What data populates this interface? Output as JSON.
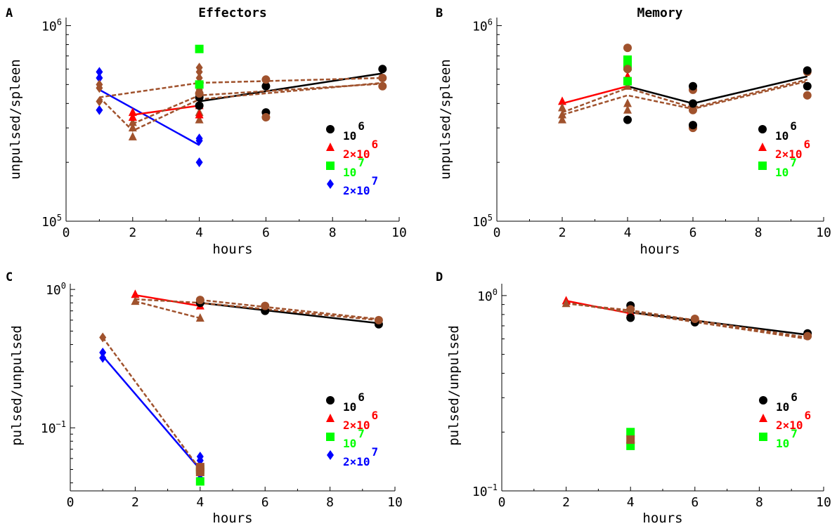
{
  "colors": {
    "black": "#000000",
    "red": "#ff0000",
    "green": "#00ff00",
    "blue": "#0000ff",
    "brown": "#a0522d"
  },
  "chart_data": [
    {
      "panel_letter": "A",
      "title": "Effectors",
      "type": "scatter",
      "xlabel": "hours",
      "ylabel": "unpulsed/spleen",
      "xlim": [
        0,
        10
      ],
      "ylim": [
        100000,
        1100000
      ],
      "log_y": true,
      "x_ticks": [
        0,
        2,
        4,
        6,
        8,
        10
      ],
      "y_ticks": [
        {
          "value": 100000,
          "base": "10",
          "exp": "5"
        },
        {
          "value": 1000000,
          "base": "10",
          "exp": "6"
        }
      ],
      "legend": [
        {
          "base": "10",
          "exp": "6",
          "color": "black",
          "marker": "circle"
        },
        {
          "base": "2×10",
          "exp": "6",
          "color": "red",
          "marker": "triangle"
        },
        {
          "base": "10",
          "exp": "7",
          "color": "green",
          "marker": "square"
        },
        {
          "base": "2×10",
          "exp": "7",
          "color": "blue",
          "marker": "diamond"
        }
      ],
      "points": [
        {
          "color": "blue",
          "marker": "diamond",
          "xy": [
            [
              1,
              580000
            ],
            [
              1,
              540000
            ],
            [
              1,
              370000
            ],
            [
              4,
              265000
            ],
            [
              4,
              258000
            ],
            [
              4,
              200000
            ]
          ]
        },
        {
          "color": "brown",
          "marker": "diamond",
          "xy": [
            [
              1,
              500000
            ],
            [
              1,
              480000
            ],
            [
              1,
              410000
            ],
            [
              4,
              610000
            ],
            [
              4,
              580000
            ],
            [
              4,
              540000
            ],
            [
              4,
              470000
            ]
          ]
        },
        {
          "color": "brown",
          "marker": "triangle",
          "xy": [
            [
              2,
              340000
            ],
            [
              2,
              320000
            ],
            [
              2,
              300000
            ],
            [
              2,
              270000
            ],
            [
              4,
              400000
            ],
            [
              4,
              360000
            ],
            [
              4,
              330000
            ]
          ]
        },
        {
          "color": "red",
          "marker": "triangle",
          "xy": [
            [
              2,
              360000
            ],
            [
              2,
              340000
            ],
            [
              4,
              390000
            ],
            [
              4,
              350000
            ]
          ]
        },
        {
          "color": "green",
          "marker": "square",
          "xy": [
            [
              4,
              760000
            ],
            [
              4,
              500000
            ]
          ]
        },
        {
          "color": "black",
          "marker": "circle",
          "xy": [
            [
              4,
              430000
            ],
            [
              4,
              390000
            ],
            [
              6,
              490000
            ],
            [
              6,
              360000
            ],
            [
              9.5,
              600000
            ]
          ]
        },
        {
          "color": "brown",
          "marker": "circle",
          "xy": [
            [
              4,
              450000
            ],
            [
              6,
              530000
            ],
            [
              6,
              340000
            ],
            [
              9.5,
              540000
            ],
            [
              9.5,
              490000
            ]
          ]
        }
      ],
      "lines": [
        {
          "color": "blue",
          "dashed": false,
          "xy": [
            [
              1,
              470000
            ],
            [
              4,
              245000
            ]
          ]
        },
        {
          "color": "red",
          "dashed": false,
          "xy": [
            [
              2,
              350000
            ],
            [
              4,
              390000
            ]
          ]
        },
        {
          "color": "black",
          "dashed": false,
          "xy": [
            [
              4,
              410000
            ],
            [
              9.5,
              570000
            ]
          ]
        },
        {
          "color": "brown",
          "dashed": true,
          "xy": [
            [
              1,
              430000
            ],
            [
              4,
              510000
            ],
            [
              9.5,
              540000
            ]
          ]
        },
        {
          "color": "brown",
          "dashed": true,
          "xy": [
            [
              1,
              430000
            ],
            [
              2,
              290000
            ],
            [
              4,
              420000
            ],
            [
              9.5,
              510000
            ]
          ]
        },
        {
          "color": "brown",
          "dashed": true,
          "xy": [
            [
              2,
              315000
            ],
            [
              4,
              440000
            ],
            [
              9.5,
              505000
            ]
          ]
        }
      ]
    },
    {
      "panel_letter": "B",
      "title": "Memory",
      "type": "scatter",
      "xlabel": "hours",
      "ylabel": "unpulsed/spleen",
      "xlim": [
        0,
        10
      ],
      "ylim": [
        100000,
        1100000
      ],
      "log_y": true,
      "x_ticks": [
        0,
        2,
        4,
        6,
        8,
        10
      ],
      "y_ticks": [
        {
          "value": 100000,
          "base": "10",
          "exp": "5"
        },
        {
          "value": 1000000,
          "base": "10",
          "exp": "6"
        }
      ],
      "legend": [
        {
          "base": "10",
          "exp": "6",
          "color": "black",
          "marker": "circle"
        },
        {
          "base": "2×10",
          "exp": "6",
          "color": "red",
          "marker": "triangle"
        },
        {
          "base": "10",
          "exp": "7",
          "color": "green",
          "marker": "square"
        }
      ],
      "points": [
        {
          "color": "red",
          "marker": "triangle",
          "xy": [
            [
              2,
              410000
            ],
            [
              4,
              550000
            ]
          ]
        },
        {
          "color": "brown",
          "marker": "triangle",
          "xy": [
            [
              2,
              380000
            ],
            [
              2,
              350000
            ],
            [
              2,
              330000
            ],
            [
              4,
              400000
            ],
            [
              4,
              370000
            ],
            [
              4,
              490000
            ]
          ]
        },
        {
          "color": "green",
          "marker": "square",
          "xy": [
            [
              4,
              670000
            ],
            [
              4,
              620000
            ],
            [
              4,
              520000
            ]
          ]
        },
        {
          "color": "brown",
          "marker": "circle",
          "xy": [
            [
              4,
              770000
            ],
            [
              4,
              600000
            ],
            [
              6,
              470000
            ],
            [
              6,
              370000
            ],
            [
              6,
              300000
            ],
            [
              9.5,
              580000
            ],
            [
              9.5,
              440000
            ]
          ]
        },
        {
          "color": "black",
          "marker": "circle",
          "xy": [
            [
              4,
              330000
            ],
            [
              6,
              490000
            ],
            [
              6,
              400000
            ],
            [
              6,
              310000
            ],
            [
              9.5,
              590000
            ],
            [
              9.5,
              490000
            ]
          ]
        }
      ],
      "lines": [
        {
          "color": "red",
          "dashed": false,
          "xy": [
            [
              2,
              400000
            ],
            [
              4,
              490000
            ]
          ]
        },
        {
          "color": "black",
          "dashed": false,
          "xy": [
            [
              4,
              490000
            ],
            [
              6,
              400000
            ],
            [
              9.5,
              550000
            ]
          ]
        },
        {
          "color": "brown",
          "dashed": true,
          "xy": [
            [
              2,
              360000
            ],
            [
              4,
              480000
            ],
            [
              6,
              380000
            ],
            [
              9.5,
              530000
            ]
          ]
        },
        {
          "color": "brown",
          "dashed": true,
          "xy": [
            [
              2,
              350000
            ],
            [
              4,
              440000
            ],
            [
              6,
              375000
            ],
            [
              9.5,
              520000
            ]
          ]
        }
      ]
    },
    {
      "panel_letter": "C",
      "title": "",
      "type": "scatter",
      "xlabel": "hours",
      "ylabel": "pulsed/unpulsed",
      "xlim": [
        0,
        10
      ],
      "ylim": [
        0.035,
        1.1
      ],
      "log_y": true,
      "x_ticks": [
        0,
        2,
        4,
        6,
        8,
        10
      ],
      "y_ticks": [
        {
          "value": 1,
          "base": "10",
          "exp": "0"
        },
        {
          "value": 0.1,
          "base": "10",
          "exp": "−1"
        }
      ],
      "legend": [
        {
          "base": "10",
          "exp": "6",
          "color": "black",
          "marker": "circle"
        },
        {
          "base": "2×10",
          "exp": "6",
          "color": "red",
          "marker": "triangle"
        },
        {
          "base": "10",
          "exp": "7",
          "color": "green",
          "marker": "square"
        },
        {
          "base": "2×10",
          "exp": "7",
          "color": "blue",
          "marker": "diamond"
        }
      ],
      "points": [
        {
          "color": "brown",
          "marker": "diamond",
          "xy": [
            [
              1,
              0.45
            ]
          ]
        },
        {
          "color": "blue",
          "marker": "diamond",
          "xy": [
            [
              1,
              0.35
            ],
            [
              1,
              0.32
            ],
            [
              4,
              0.062
            ],
            [
              4,
              0.058
            ],
            [
              4,
              0.043
            ]
          ]
        },
        {
          "color": "green",
          "marker": "square",
          "xy": [
            [
              4,
              0.041
            ],
            [
              4,
              0.05
            ]
          ]
        },
        {
          "color": "brown",
          "marker": "square",
          "xy": [
            [
              4,
              0.048
            ],
            [
              4,
              0.052
            ]
          ]
        },
        {
          "color": "red",
          "marker": "triangle",
          "xy": [
            [
              2,
              0.92
            ],
            [
              4,
              0.76
            ]
          ]
        },
        {
          "color": "brown",
          "marker": "triangle",
          "xy": [
            [
              2,
              0.82
            ],
            [
              4,
              0.62
            ]
          ]
        },
        {
          "color": "black",
          "marker": "circle",
          "xy": [
            [
              4,
              0.8
            ],
            [
              6,
              0.7
            ],
            [
              9.5,
              0.56
            ]
          ]
        },
        {
          "color": "brown",
          "marker": "circle",
          "xy": [
            [
              4,
              0.84
            ],
            [
              6,
              0.76
            ],
            [
              9.5,
              0.6
            ]
          ]
        }
      ],
      "lines": [
        {
          "color": "blue",
          "dashed": false,
          "xy": [
            [
              1,
              0.33
            ],
            [
              4,
              0.05
            ]
          ]
        },
        {
          "color": "brown",
          "dashed": true,
          "xy": [
            [
              1,
              0.45
            ],
            [
              4,
              0.05
            ]
          ]
        },
        {
          "color": "red",
          "dashed": false,
          "xy": [
            [
              2,
              0.91
            ],
            [
              4,
              0.76
            ]
          ]
        },
        {
          "color": "black",
          "dashed": false,
          "xy": [
            [
              4,
              0.8
            ],
            [
              9.5,
              0.57
            ]
          ]
        },
        {
          "color": "brown",
          "dashed": true,
          "xy": [
            [
              2,
              0.82
            ],
            [
              4,
              0.62
            ]
          ]
        },
        {
          "color": "brown",
          "dashed": true,
          "xy": [
            [
              4,
              0.84
            ],
            [
              9.5,
              0.61
            ]
          ]
        },
        {
          "color": "brown",
          "dashed": true,
          "xy": [
            [
              2,
              0.85
            ],
            [
              4,
              0.8
            ],
            [
              9.5,
              0.6
            ]
          ]
        }
      ]
    },
    {
      "panel_letter": "D",
      "title": "",
      "type": "scatter",
      "xlabel": "hours",
      "ylabel": "pulsed/unpulsed",
      "xlim": [
        0,
        10
      ],
      "ylim": [
        0.1,
        1.15
      ],
      "log_y": true,
      "x_ticks": [
        0,
        2,
        4,
        6,
        8,
        10
      ],
      "y_ticks": [
        {
          "value": 1,
          "base": "10",
          "exp": "0"
        },
        {
          "value": 0.1,
          "base": "10",
          "exp": "−1"
        }
      ],
      "legend": [
        {
          "base": "10",
          "exp": "6",
          "color": "black",
          "marker": "circle"
        },
        {
          "base": "2×10",
          "exp": "6",
          "color": "red",
          "marker": "triangle"
        },
        {
          "base": "10",
          "exp": "7",
          "color": "green",
          "marker": "square"
        }
      ],
      "points": [
        {
          "color": "red",
          "marker": "triangle",
          "xy": [
            [
              2,
              0.94
            ],
            [
              4,
              0.82
            ]
          ]
        },
        {
          "color": "brown",
          "marker": "triangle",
          "xy": [
            [
              2,
              0.91
            ],
            [
              4,
              0.8
            ]
          ]
        },
        {
          "color": "black",
          "marker": "circle",
          "xy": [
            [
              4,
              0.89
            ],
            [
              4,
              0.77
            ],
            [
              6,
              0.73
            ],
            [
              9.5,
              0.64
            ]
          ]
        },
        {
          "color": "brown",
          "marker": "circle",
          "xy": [
            [
              4,
              0.85
            ],
            [
              6,
              0.76
            ],
            [
              9.5,
              0.62
            ]
          ]
        },
        {
          "color": "green",
          "marker": "square",
          "xy": [
            [
              4,
              0.2
            ],
            [
              4,
              0.17
            ]
          ]
        },
        {
          "color": "brown",
          "marker": "square",
          "xy": [
            [
              4,
              0.183
            ]
          ]
        }
      ],
      "lines": [
        {
          "color": "red",
          "dashed": false,
          "xy": [
            [
              2,
              0.94
            ],
            [
              4,
              0.81
            ]
          ]
        },
        {
          "color": "black",
          "dashed": false,
          "xy": [
            [
              4,
              0.82
            ],
            [
              9.5,
              0.63
            ]
          ]
        },
        {
          "color": "brown",
          "dashed": true,
          "xy": [
            [
              2,
              0.91
            ],
            [
              4,
              0.84
            ],
            [
              9.5,
              0.61
            ]
          ]
        },
        {
          "color": "brown",
          "dashed": true,
          "xy": [
            [
              2,
              0.92
            ],
            [
              4,
              0.82
            ],
            [
              9.5,
              0.6
            ]
          ]
        }
      ]
    }
  ]
}
